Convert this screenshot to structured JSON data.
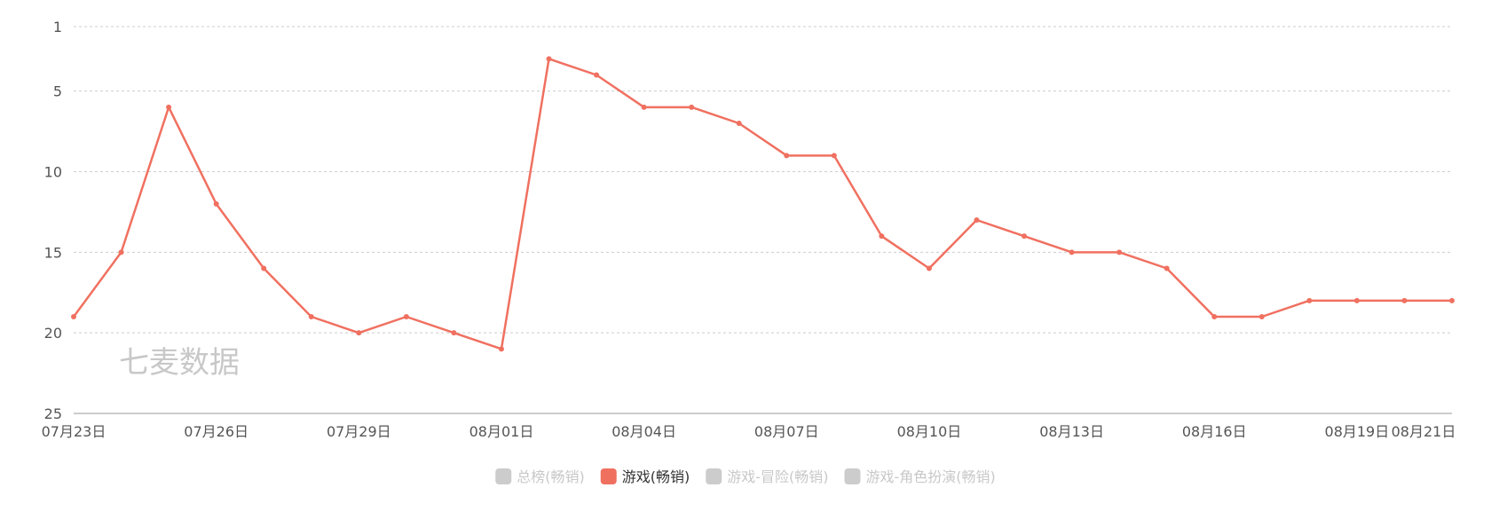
{
  "watermark": "七麦数据",
  "chart_data": {
    "type": "line",
    "title": "",
    "xlabel": "",
    "ylabel": "",
    "y_inverted": true,
    "ylim": [
      1,
      25
    ],
    "y_ticks": [
      1,
      5,
      10,
      15,
      20,
      25
    ],
    "grid": "horizontal dashed",
    "legend_position": "bottom-center",
    "x": [
      "07月23日",
      "07月24日",
      "07月25日",
      "07月26日",
      "07月27日",
      "07月28日",
      "07月29日",
      "07月30日",
      "07月31日",
      "08月01日",
      "08月02日",
      "08月03日",
      "08月04日",
      "08月05日",
      "08月06日",
      "08月07日",
      "08月08日",
      "08月09日",
      "08月10日",
      "08月11日",
      "08月12日",
      "08月13日",
      "08月14日",
      "08月15日",
      "08月16日",
      "08月17日",
      "08月18日",
      "08月19日",
      "08月20日",
      "08月21日"
    ],
    "x_tick_labels": [
      "07月23日",
      "07月26日",
      "07月29日",
      "08月01日",
      "08月04日",
      "08月07日",
      "08月10日",
      "08月13日",
      "08月16日",
      "08月19日",
      "08月21日"
    ],
    "series": [
      {
        "name": "游戏(畅销)",
        "color": "#f07060",
        "active": true,
        "values": [
          19,
          15,
          6,
          12,
          16,
          19,
          20,
          19,
          20,
          21,
          3,
          4,
          6,
          6,
          7,
          9,
          9,
          14,
          16,
          13,
          14,
          15,
          15,
          16,
          19,
          19,
          18,
          18,
          18,
          18
        ]
      }
    ],
    "legend": [
      {
        "name": "总榜(畅销)",
        "active": false,
        "color": "#cccccc"
      },
      {
        "name": "游戏(畅销)",
        "active": true,
        "color": "#f07060"
      },
      {
        "name": "游戏-冒险(畅销)",
        "active": false,
        "color": "#cccccc"
      },
      {
        "name": "游戏-角色扮演(畅销)",
        "active": false,
        "color": "#cccccc"
      }
    ]
  }
}
